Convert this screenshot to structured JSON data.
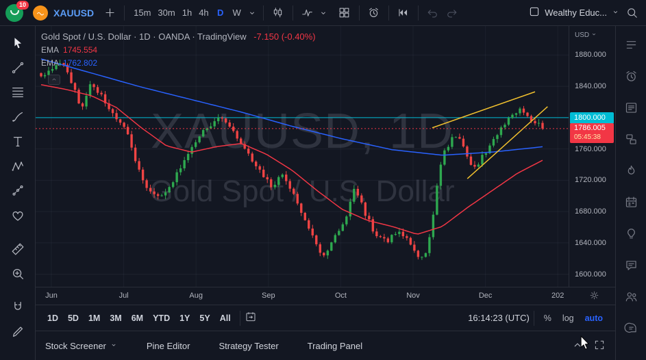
{
  "header": {
    "badge": "10",
    "symbol": "XAUUSD",
    "timeframes": [
      "15m",
      "30m",
      "1h",
      "4h",
      "D",
      "W"
    ],
    "active_timeframe": "D",
    "layout_name": "Wealthy Educ..."
  },
  "left_toolbar": {
    "tools": [
      {
        "name": "cursor-tool",
        "icon": "cursor"
      },
      {
        "name": "trend-line-tool",
        "icon": "trendline"
      },
      {
        "name": "fib-retracement-tool",
        "icon": "fib"
      },
      {
        "name": "brush-tool",
        "icon": "brush"
      },
      {
        "name": "text-tool",
        "icon": "text"
      },
      {
        "name": "xabcd-pattern-tool",
        "icon": "xabcd"
      },
      {
        "name": "prediction-tool",
        "icon": "prediction"
      },
      {
        "name": "emoji-tool",
        "icon": "heart"
      },
      {
        "name": "measure-tool",
        "icon": "measure",
        "gap": true
      },
      {
        "name": "zoom-in-tool",
        "icon": "zoomin"
      },
      {
        "name": "magnet-tool",
        "icon": "magnet",
        "gap": true
      },
      {
        "name": "draw-tool",
        "icon": "pencil"
      }
    ]
  },
  "right_sidebar": {
    "tools": [
      {
        "name": "watchlist-panel",
        "icon": "watchlist"
      },
      {
        "name": "alerts-panel",
        "icon": "alarm"
      },
      {
        "name": "news-panel",
        "icon": "news"
      },
      {
        "name": "data-window-panel",
        "icon": "layers"
      },
      {
        "name": "hotlists-panel",
        "icon": "flame"
      },
      {
        "name": "calendar-panel",
        "icon": "calendar"
      },
      {
        "name": "ideas-panel",
        "icon": "bulb"
      },
      {
        "name": "chat-panel",
        "icon": "chat"
      },
      {
        "name": "community-panel",
        "icon": "people"
      },
      {
        "name": "help-panel",
        "icon": "helpchat"
      }
    ]
  },
  "chart": {
    "legend_title": "Gold Spot / U.S. Dollar · 1D · OANDA · TradingView",
    "legend_change": "-7.150 (-0.40%)",
    "indicators": [
      {
        "label": "EMA",
        "value": "1745.554",
        "color": "#f23645"
      },
      {
        "label": "EMA",
        "value": "1762.802",
        "color": "#2962ff"
      }
    ],
    "watermark_line1": "XAUUSD, 1D",
    "watermark_line2": "Gold Spot / U.S. Dollar",
    "axis_currency": "USD",
    "price_label_active": "1800.000",
    "price_label_last": "1786.005",
    "countdown": "05:45:38"
  },
  "chart_data": {
    "type": "candlestick",
    "title": "Gold Spot / U.S. Dollar",
    "symbol": "XAUUSD",
    "interval": "1D",
    "exchange": "OANDA",
    "last_price": 1786.005,
    "change": "-7.150 (-0.40%)",
    "y_domain": [
      1584,
      1917
    ],
    "price_axis_ticks": [
      1880,
      1840,
      1800,
      1760,
      1720,
      1680,
      1640,
      1600
    ],
    "time_axis_labels": [
      "Jun",
      "Jul",
      "Aug",
      "Sep",
      "Oct",
      "Nov",
      "Dec",
      "202"
    ],
    "n_candles": 134,
    "candle_colors": {
      "up": "#2ea84f",
      "down": "#ef4444"
    },
    "close_anchors": [
      [
        0,
        1851
      ],
      [
        0.02,
        1862
      ],
      [
        0.04,
        1873
      ],
      [
        0.06,
        1845
      ],
      [
        0.08,
        1812
      ],
      [
        0.1,
        1846
      ],
      [
        0.125,
        1822
      ],
      [
        0.15,
        1801
      ],
      [
        0.168,
        1787
      ],
      [
        0.19,
        1737
      ],
      [
        0.215,
        1707
      ],
      [
        0.24,
        1700
      ],
      [
        0.265,
        1722
      ],
      [
        0.29,
        1748
      ],
      [
        0.308,
        1768
      ],
      [
        0.33,
        1788
      ],
      [
        0.355,
        1801
      ],
      [
        0.375,
        1793
      ],
      [
        0.4,
        1763
      ],
      [
        0.43,
        1736
      ],
      [
        0.46,
        1713
      ],
      [
        0.48,
        1727
      ],
      [
        0.5,
        1705
      ],
      [
        0.525,
        1669
      ],
      [
        0.55,
        1635
      ],
      [
        0.565,
        1623
      ],
      [
        0.585,
        1651
      ],
      [
        0.607,
        1665
      ],
      [
        0.625,
        1713
      ],
      [
        0.645,
        1679
      ],
      [
        0.665,
        1653
      ],
      [
        0.69,
        1641
      ],
      [
        0.715,
        1657
      ],
      [
        0.735,
        1639
      ],
      [
        0.75,
        1625
      ],
      [
        0.762,
        1617
      ],
      [
        0.775,
        1647
      ],
      [
        0.788,
        1707
      ],
      [
        0.8,
        1753
      ],
      [
        0.815,
        1769
      ],
      [
        0.83,
        1779
      ],
      [
        0.845,
        1761
      ],
      [
        0.862,
        1733
      ],
      [
        0.878,
        1749
      ],
      [
        0.893,
        1763
      ],
      [
        0.908,
        1779
      ],
      [
        0.925,
        1793
      ],
      [
        0.94,
        1801
      ],
      [
        0.955,
        1813
      ],
      [
        0.968,
        1803
      ],
      [
        0.982,
        1797
      ],
      [
        1,
        1786
      ]
    ],
    "ema_fast": {
      "label": "EMA",
      "value": 1745.554,
      "color": "#f23645",
      "anchors": [
        [
          0,
          1842
        ],
        [
          0.05,
          1836
        ],
        [
          0.1,
          1828
        ],
        [
          0.15,
          1813
        ],
        [
          0.2,
          1787
        ],
        [
          0.25,
          1764
        ],
        [
          0.3,
          1756
        ],
        [
          0.35,
          1763
        ],
        [
          0.4,
          1767
        ],
        [
          0.45,
          1753
        ],
        [
          0.5,
          1733
        ],
        [
          0.55,
          1707
        ],
        [
          0.6,
          1683
        ],
        [
          0.65,
          1669
        ],
        [
          0.7,
          1661
        ],
        [
          0.75,
          1651
        ],
        [
          0.8,
          1661
        ],
        [
          0.85,
          1685
        ],
        [
          0.9,
          1707
        ],
        [
          0.95,
          1729
        ],
        [
          1,
          1745.5
        ]
      ]
    },
    "ema_slow": {
      "label": "EMA",
      "value": 1762.802,
      "color": "#2962ff",
      "anchors": [
        [
          0,
          1875
        ],
        [
          0.1,
          1857
        ],
        [
          0.2,
          1839
        ],
        [
          0.3,
          1823
        ],
        [
          0.4,
          1807
        ],
        [
          0.5,
          1789
        ],
        [
          0.6,
          1773
        ],
        [
          0.7,
          1759
        ],
        [
          0.8,
          1752
        ],
        [
          0.9,
          1756
        ],
        [
          1,
          1762.8
        ]
      ]
    },
    "trendlines": [
      {
        "x1": 0.78,
        "p1": 1787,
        "x2": 0.985,
        "p2": 1833,
        "color": "#f2c12e"
      },
      {
        "x1": 0.85,
        "p1": 1722,
        "x2": 1.01,
        "p2": 1814,
        "color": "#f2c12e"
      }
    ],
    "horizontal_line": {
      "price": 1800,
      "color": "#00bcd4"
    }
  },
  "bottom_toolbar": {
    "ranges": [
      "1D",
      "5D",
      "1M",
      "3M",
      "6M",
      "YTD",
      "1Y",
      "5Y",
      "All"
    ],
    "clock": "16:14:23 (UTC)",
    "scales": [
      "%",
      "log",
      "auto"
    ],
    "active_scale": "auto"
  },
  "bottom_panel": {
    "tabs": [
      "Stock Screener",
      "Pine Editor",
      "Strategy Tester",
      "Trading Panel"
    ]
  },
  "ui_colors": {
    "accent_blue": "#2962ff",
    "background": "#131722",
    "border": "#2a2e39",
    "label_cyan": "#00bcd4",
    "label_red": "#f23645"
  }
}
